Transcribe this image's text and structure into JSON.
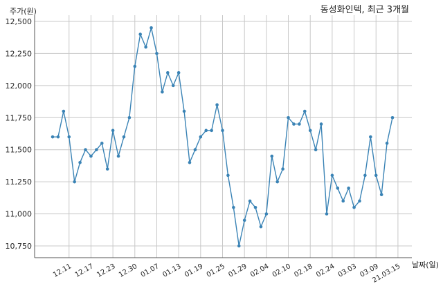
{
  "chart_data": {
    "type": "line",
    "title": "동성화인텍, 최근 3개월",
    "xlabel": "날짜(일)",
    "ylabel": "주가(원)",
    "ylim": [
      10700,
      12550
    ],
    "yticks": [
      10750,
      11000,
      11250,
      11500,
      11750,
      12000,
      12250,
      12500
    ],
    "ytick_labels": [
      "10,750",
      "11,000",
      "11,250",
      "11,500",
      "11,750",
      "12,000",
      "12,250",
      "12,500"
    ],
    "xtick_labels": [
      "12.11",
      "12.17",
      "12.23",
      "12.30",
      "01.07",
      "01.13",
      "01.19",
      "01.25",
      "01.29",
      "02.04",
      "02.10",
      "02.18",
      "02.24",
      "03.03",
      "03.09",
      "21.03.15"
    ],
    "xtick_index": [
      3,
      7,
      11,
      15,
      19,
      23,
      27,
      31,
      35,
      39,
      43,
      47,
      51,
      55,
      59,
      63
    ],
    "grid": true,
    "color": "#3a83b5",
    "series": [
      {
        "values": [
          11600,
          11600,
          11800,
          11600,
          11250,
          11400,
          11500,
          11450,
          11500,
          11550,
          11350,
          11650,
          11450,
          11600,
          11750,
          12150,
          12400,
          12300,
          12450,
          12250,
          11950,
          12100,
          12000,
          12100,
          11800,
          11400,
          11500,
          11600,
          11650,
          11650,
          11850,
          11650,
          11300,
          11050,
          10750,
          10950,
          11100,
          11050,
          10900,
          11000,
          11450,
          11250,
          11350,
          11750,
          11700,
          11700,
          11800,
          11650,
          11500,
          11700,
          11000,
          11300,
          11200,
          11100,
          11200,
          11050,
          11100,
          11300,
          11600,
          11300,
          11150,
          11550,
          11750
        ]
      }
    ]
  }
}
